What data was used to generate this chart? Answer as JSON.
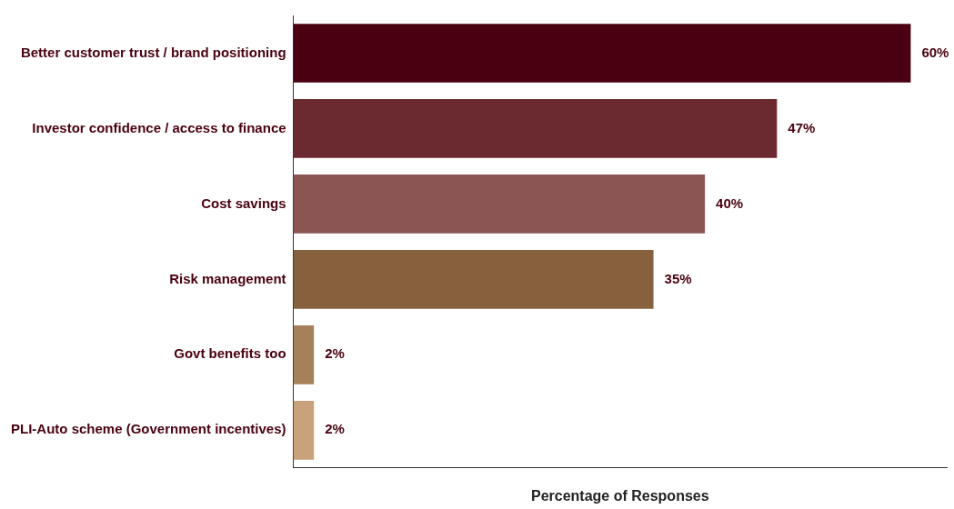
{
  "chart_data": {
    "type": "bar",
    "orientation": "horizontal",
    "xlabel": "Percentage of Responses",
    "categories": [
      "Better customer trust / brand positioning",
      "Investor confidence / access to finance",
      "Cost savings",
      "Risk management",
      "Govt benefits too",
      "PLI-Auto scheme (Government incentives)"
    ],
    "values": [
      60,
      47,
      40,
      35,
      2,
      2
    ],
    "colors": [
      "#4a0010",
      "#6b2a30",
      "#8a5552",
      "#87603d",
      "#a6805a",
      "#c9a27c"
    ],
    "value_labels": [
      "60%",
      "47%",
      "40%",
      "35%",
      "2%",
      "2%"
    ],
    "xlim": [
      0,
      63.5
    ],
    "tick_labels": "y",
    "grid": false,
    "legend": false
  }
}
